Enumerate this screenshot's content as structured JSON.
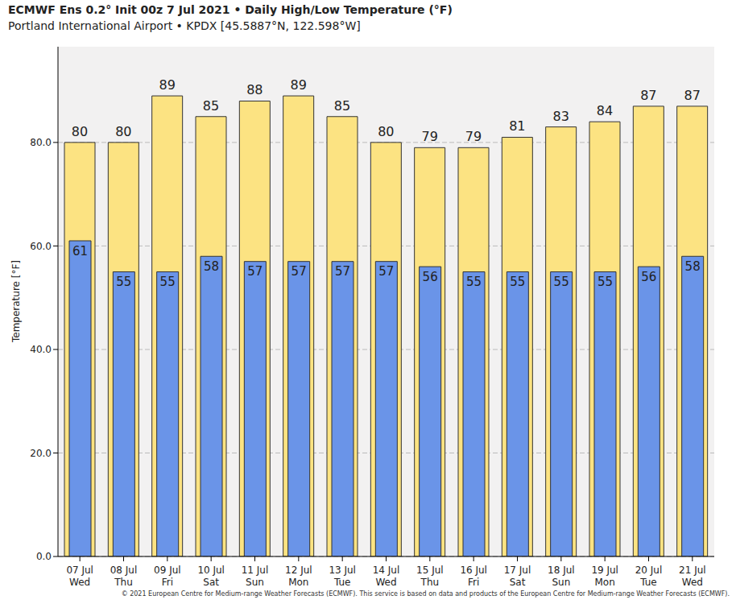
{
  "chart_data": {
    "type": "bar",
    "title": "ECMWF Ens 0.2° Init 00z 7 Jul 2021 • Daily High/Low Temperature (°F)",
    "subtitle": "Portland International Airport • KPDX [45.5887°N, 122.598°W]",
    "y_label": "Temperature [°F]",
    "categories": [
      "07 Jul\nWed",
      "08 Jul\nThu",
      "09 Jul\nFri",
      "10 Jul\nSat",
      "11 Jul\nSun",
      "12 Jul\nMon",
      "13 Jul\nTue",
      "14 Jul\nWed",
      "15 Jul\nThu",
      "16 Jul\nFri",
      "17 Jul\nSat",
      "18 Jul\nSun",
      "19 Jul\nMon",
      "20 Jul\nTue",
      "21 Jul\nWed"
    ],
    "series": [
      {
        "color": "#fce382",
        "values": [
          80,
          80,
          89,
          85,
          88,
          89,
          85,
          80,
          79,
          79,
          81,
          83,
          84,
          87,
          87
        ]
      },
      {
        "color": "#6a94e8",
        "values": [
          61,
          55,
          55,
          58,
          57,
          57,
          57,
          57,
          56,
          55,
          55,
          55,
          55,
          56,
          58
        ]
      }
    ],
    "ylim": [
      0,
      98.5
    ],
    "yticks": [
      {
        "value": 0,
        "label": "0.0"
      },
      {
        "value": 20,
        "label": "20.0"
      },
      {
        "value": 40,
        "label": "40.0"
      },
      {
        "value": 60,
        "label": "60.0"
      },
      {
        "value": 80,
        "label": "80.0"
      }
    ],
    "grid": true,
    "data_labels": true,
    "annotations": [
      "© 2021 European Centre for Medium-range Weather Forecasts (ECMWF). This service is based on data and products of the European Centre for Medium-range Weather Forecasts (ECMWF)."
    ]
  }
}
